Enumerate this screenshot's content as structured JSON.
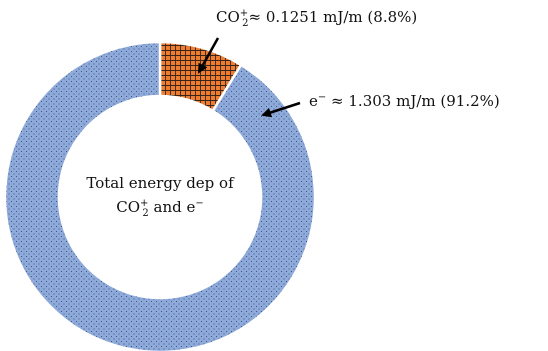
{
  "chart_data": {
    "type": "pie",
    "donut": true,
    "center_label": {
      "line1": "Total energy dep of",
      "line2_species": "CO",
      "line2_sub": "2",
      "line2_sup": "+",
      "line2_suffix": " and e",
      "line2_suffix_sup": "−"
    },
    "slices": [
      {
        "species": "CO",
        "sub": "2",
        "sup": "+",
        "value": 0.1251,
        "unit": "mJ/m",
        "percent": 8.8,
        "label_text": "≈ 0.1251 mJ/m (8.8%)",
        "color": "#ed7d31",
        "pattern": "grid"
      },
      {
        "species": "e",
        "sub": "",
        "sup": "−",
        "value": 1.303,
        "unit": "mJ/m",
        "percent": 91.2,
        "label_text": " ≈ 1.303 mJ/m (91.2%)",
        "color": "#8eaadb",
        "pattern": "dots"
      }
    ]
  }
}
